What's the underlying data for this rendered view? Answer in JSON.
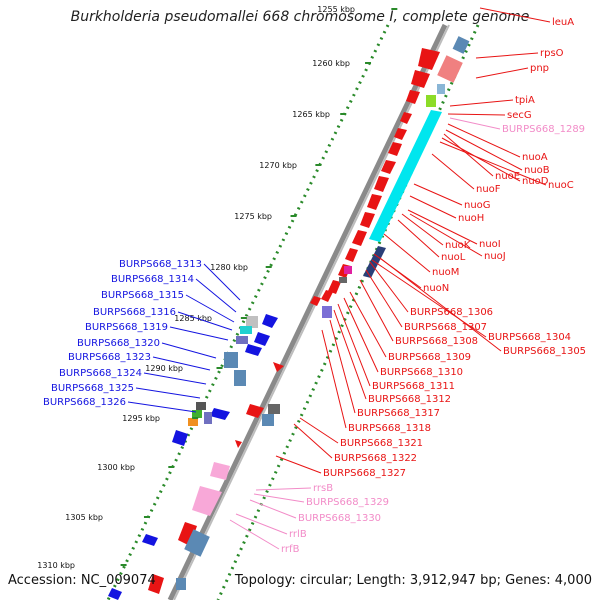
{
  "header": {
    "title": "Burkholderia pseudomallei 668 chromosome I, complete genome"
  },
  "footer": {
    "accession": "Accession: NC_009074",
    "summary": "Topology: circular; Length: 3,912,947 bp; Genes: 4,000"
  },
  "colors": {
    "backbone": "#888888",
    "forward_gene": "#e81414",
    "reverse_gene": "#1414e0",
    "rna_gene": "#f28cc8",
    "tick": "#2a8a2a",
    "cds_cyan": "#00e6ee",
    "feature_steel": "#5b89b4",
    "feature_purple": "#7b6fd6"
  },
  "ruler": {
    "ticks": [
      "1255 kbp",
      "1260 kbp",
      "1265 kbp",
      "1270 kbp",
      "1275 kbp",
      "1280 kbp",
      "1285 kbp",
      "1290 kbp",
      "1295 kbp",
      "1300 kbp",
      "1305 kbp",
      "1310 kbp"
    ]
  },
  "labels_right": [
    {
      "text": "leuA",
      "group": "forward"
    },
    {
      "text": "rpsO",
      "group": "forward"
    },
    {
      "text": "pnp",
      "group": "forward"
    },
    {
      "text": "tpiA",
      "group": "forward"
    },
    {
      "text": "secG",
      "group": "forward"
    },
    {
      "text": "BURPS668_1289",
      "group": "rna"
    },
    {
      "text": "nuoA",
      "group": "forward"
    },
    {
      "text": "nuoB",
      "group": "forward"
    },
    {
      "text": "nuoE",
      "group": "forward"
    },
    {
      "text": "nuoD",
      "group": "forward"
    },
    {
      "text": "nuoC",
      "group": "forward"
    },
    {
      "text": "nuoF",
      "group": "forward"
    },
    {
      "text": "nuoG",
      "group": "forward"
    },
    {
      "text": "nuoH",
      "group": "forward"
    },
    {
      "text": "nuoK",
      "group": "forward"
    },
    {
      "text": "nuoI",
      "group": "forward"
    },
    {
      "text": "nuoL",
      "group": "forward"
    },
    {
      "text": "nuoJ",
      "group": "forward"
    },
    {
      "text": "nuoM",
      "group": "forward"
    },
    {
      "text": "nuoN",
      "group": "forward"
    },
    {
      "text": "BURPS668_1306",
      "group": "forward"
    },
    {
      "text": "BURPS668_1307",
      "group": "forward"
    },
    {
      "text": "BURPS668_1304",
      "group": "forward"
    },
    {
      "text": "BURPS668_1308",
      "group": "forward"
    },
    {
      "text": "BURPS668_1305",
      "group": "forward"
    },
    {
      "text": "BURPS668_1309",
      "group": "forward"
    },
    {
      "text": "BURPS668_1310",
      "group": "forward"
    },
    {
      "text": "BURPS668_1311",
      "group": "forward"
    },
    {
      "text": "BURPS668_1312",
      "group": "forward"
    },
    {
      "text": "BURPS668_1317",
      "group": "forward"
    },
    {
      "text": "BURPS668_1318",
      "group": "forward"
    },
    {
      "text": "BURPS668_1321",
      "group": "forward"
    },
    {
      "text": "BURPS668_1322",
      "group": "forward"
    },
    {
      "text": "BURPS668_1327",
      "group": "forward"
    },
    {
      "text": "rrsB",
      "group": "rna"
    },
    {
      "text": "BURPS668_1329",
      "group": "rna"
    },
    {
      "text": "BURPS668_1330",
      "group": "rna"
    },
    {
      "text": "rrlB",
      "group": "rna"
    },
    {
      "text": "rrfB",
      "group": "rna"
    }
  ],
  "labels_left": [
    {
      "text": "BURPS668_1313",
      "group": "reverse"
    },
    {
      "text": "BURPS668_1314",
      "group": "reverse"
    },
    {
      "text": "BURPS668_1315",
      "group": "reverse"
    },
    {
      "text": "BURPS668_1316",
      "group": "reverse"
    },
    {
      "text": "BURPS668_1319",
      "group": "reverse"
    },
    {
      "text": "BURPS668_1320",
      "group": "reverse"
    },
    {
      "text": "BURPS668_1323",
      "group": "reverse"
    },
    {
      "text": "BURPS668_1324",
      "group": "reverse"
    },
    {
      "text": "BURPS668_1325",
      "group": "reverse"
    },
    {
      "text": "BURPS668_1326",
      "group": "reverse"
    }
  ]
}
